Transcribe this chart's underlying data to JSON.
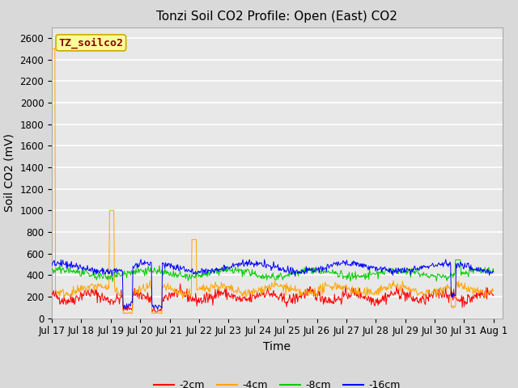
{
  "title": "Tonzi Soil CO2 Profile: Open (East) CO2",
  "ylabel": "Soil CO2 (mV)",
  "xlabel": "Time",
  "ylim": [
    0,
    2700
  ],
  "yticks": [
    0,
    200,
    400,
    600,
    800,
    1000,
    1200,
    1400,
    1600,
    1800,
    2000,
    2200,
    2400,
    2600
  ],
  "x_tick_labels": [
    "Jul 17",
    "Jul 18",
    "Jul 19",
    "Jul 20",
    "Jul 21",
    "Jul 22",
    "Jul 23",
    "Jul 24",
    "Jul 25",
    "Jul 26",
    "Jul 27",
    "Jul 28",
    "Jul 29",
    "Jul 30",
    "Jul 31",
    "Aug 1"
  ],
  "line_colors": {
    "-2cm": "#ff0000",
    "-4cm": "#ffa500",
    "-8cm": "#00cc00",
    "-16cm": "#0000ff"
  },
  "legend_label": "TZ_soilco2",
  "legend_box_facecolor": "#ffff99",
  "legend_box_edgecolor": "#ccaa00",
  "plot_bg_color": "#e8e8e8",
  "fig_bg_color": "#d9d9d9",
  "grid_color": "#ffffff",
  "title_fontsize": 11,
  "axis_label_fontsize": 10,
  "tick_fontsize": 8.5,
  "legend_fontsize": 9
}
